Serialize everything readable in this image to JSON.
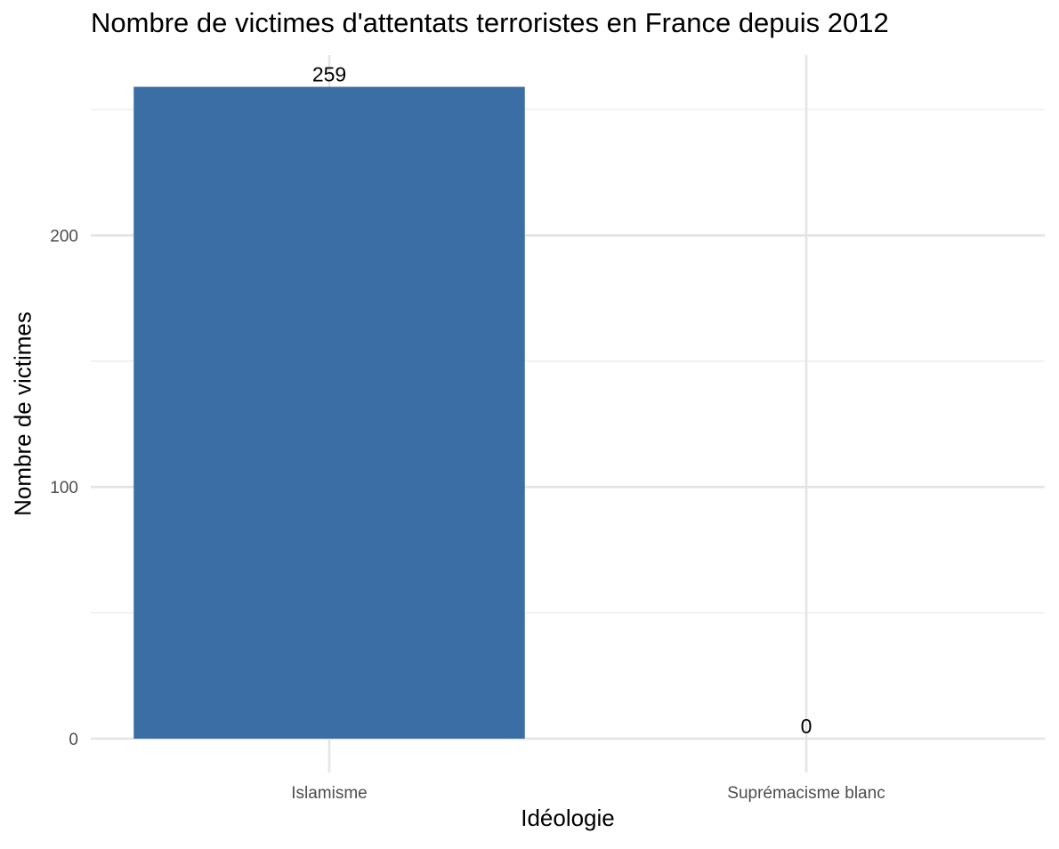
{
  "chart_data": {
    "type": "bar",
    "title": "Nombre de victimes d'attentats terroristes en France depuis 2012",
    "xlabel": "Idéologie",
    "ylabel": "Nombre de victimes",
    "categories": [
      "Islamisme",
      "Suprémacisme blanc"
    ],
    "values": [
      259,
      0
    ],
    "data_labels": [
      "259",
      "0"
    ],
    "y_ticks": [
      0,
      100,
      200
    ],
    "ylim": [
      0,
      272
    ],
    "grid": true,
    "bar_color": "#3A6EA5"
  }
}
